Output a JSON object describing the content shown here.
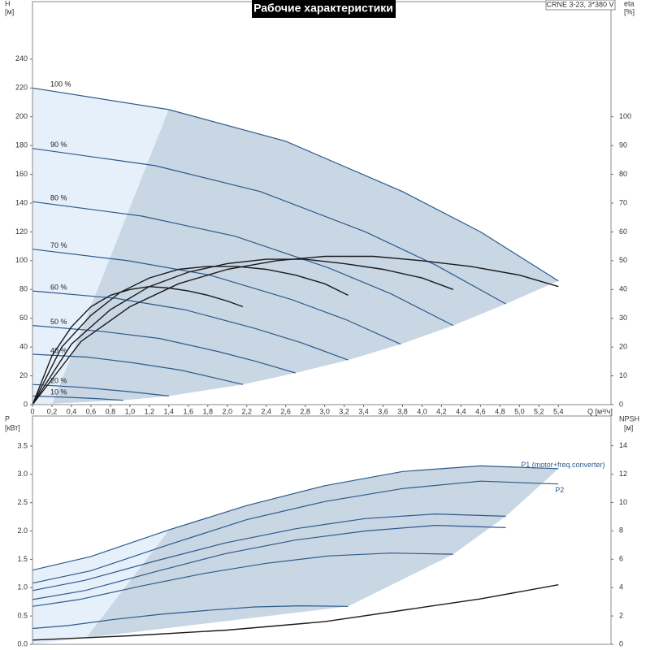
{
  "chart_data": [
    {
      "type": "line",
      "title": "Рабочие характеристики",
      "annotation": "CRNE 3-23, 3*380 V",
      "xlabel": "Q [м³/ч]",
      "ylabel": "H",
      "yunit": "[м]",
      "y2label": "eta",
      "y2unit": "[%]",
      "xlim": [
        0,
        5.94
      ],
      "ylim": [
        0,
        280
      ],
      "y2lim": [
        0,
        140
      ],
      "xticks": [
        0,
        {
          "value": 0.2,
          "label": "0,2"
        },
        {
          "value": 0.4,
          "label": "0,4"
        },
        {
          "value": 0.6,
          "label": "0,6"
        },
        {
          "value": 0.8,
          "label": "0,8"
        },
        {
          "value": 1.0,
          "label": "1,0"
        },
        {
          "value": 1.2,
          "label": "1,2"
        },
        {
          "value": 1.4,
          "label": "1,4"
        },
        {
          "value": 1.6,
          "label": "1,6"
        },
        {
          "value": 1.8,
          "label": "1,8"
        },
        {
          "value": 2.0,
          "label": "2,0"
        },
        {
          "value": 2.2,
          "label": "2,2"
        },
        {
          "value": 2.4,
          "label": "2,4"
        },
        {
          "value": 2.6,
          "label": "2,6"
        },
        {
          "value": 2.8,
          "label": "2,8"
        },
        {
          "value": 3.0,
          "label": "3,0"
        },
        {
          "value": 3.2,
          "label": "3,2"
        },
        {
          "value": 3.4,
          "label": "3,4"
        },
        {
          "value": 3.6,
          "label": "3,6"
        },
        {
          "value": 3.8,
          "label": "3,8"
        },
        {
          "value": 4.0,
          "label": "4,0"
        },
        {
          "value": 4.2,
          "label": "4,2"
        },
        {
          "value": 4.4,
          "label": "4,4"
        },
        {
          "value": 4.6,
          "label": "4,6"
        },
        {
          "value": 4.8,
          "label": "4,8"
        },
        {
          "value": 5.0,
          "label": "5,0"
        },
        {
          "value": 5.2,
          "label": "5,2"
        },
        {
          "value": 5.4,
          "label": "5,4"
        }
      ],
      "yticks": [
        0,
        20,
        40,
        60,
        80,
        100,
        120,
        140,
        160,
        180,
        200,
        220,
        240
      ],
      "y2ticks": [
        0,
        10,
        20,
        30,
        40,
        50,
        60,
        70,
        80,
        90,
        100
      ],
      "series": [
        {
          "name": "100 %",
          "color": "#2d5a8c",
          "x": [
            0,
            1.4,
            2.6,
            3.8,
            4.6,
            5.4
          ],
          "values": [
            220,
            205,
            183,
            148,
            120,
            86
          ]
        },
        {
          "name": "90 %",
          "color": "#2d5a8c",
          "x": [
            0,
            1.26,
            2.34,
            3.42,
            4.14,
            4.86
          ],
          "values": [
            178,
            166,
            148,
            120,
            97,
            70
          ]
        },
        {
          "name": "80 %",
          "color": "#2d5a8c",
          "x": [
            0,
            1.12,
            2.08,
            3.04,
            3.68,
            4.32
          ],
          "values": [
            141,
            131,
            117,
            95,
            77,
            55
          ]
        },
        {
          "name": "70 %",
          "color": "#2d5a8c",
          "x": [
            0,
            0.98,
            1.82,
            2.66,
            3.22,
            3.78
          ],
          "values": [
            108,
            100,
            90,
            73,
            59,
            42
          ]
        },
        {
          "name": "60 %",
          "color": "#2d5a8c",
          "x": [
            0,
            0.84,
            1.56,
            2.28,
            2.76,
            3.24
          ],
          "values": [
            79,
            74,
            66,
            53,
            43,
            31
          ]
        },
        {
          "name": "50 %",
          "color": "#2d5a8c",
          "x": [
            0,
            0.7,
            1.3,
            1.9,
            2.3,
            2.7
          ],
          "values": [
            55,
            51,
            46,
            37,
            30,
            22
          ]
        },
        {
          "name": "40 %",
          "color": "#2d5a8c",
          "x": [
            0,
            0.56,
            1.04,
            1.52,
            1.84,
            2.16
          ],
          "values": [
            35,
            33,
            29,
            24,
            19,
            14
          ]
        },
        {
          "name": "20 %",
          "color": "#2d5a8c",
          "x": [
            0,
            0.5,
            1.0,
            1.4
          ],
          "values": [
            14,
            12,
            9,
            6
          ]
        },
        {
          "name": "10 %",
          "color": "#2d5a8c",
          "x": [
            0,
            0.4,
            0.7,
            0.93
          ],
          "values": [
            6,
            5,
            4,
            3
          ]
        },
        {
          "color": "#1a1a1a",
          "axis": "y2",
          "x": [
            0,
            0.5,
            1.0,
            1.5,
            2.0,
            2.5,
            3.0,
            3.5,
            4.0,
            4.5,
            5.0,
            5.4
          ],
          "values": [
            0,
            22,
            34,
            42,
            47,
            50,
            51.5,
            51.5,
            50,
            48,
            45,
            41
          ]
        },
        {
          "color": "#1a1a1a",
          "axis": "y2",
          "x": [
            0,
            0.4,
            0.8,
            1.2,
            1.6,
            2.0,
            2.4,
            2.8,
            3.2,
            3.6,
            4.0,
            4.32
          ],
          "values": [
            0,
            21,
            33,
            41,
            46,
            49,
            50.5,
            50.5,
            49,
            47,
            44,
            40
          ]
        },
        {
          "color": "#1a1a1a",
          "axis": "y2",
          "x": [
            0,
            0.3,
            0.6,
            0.9,
            1.2,
            1.5,
            1.8,
            2.1,
            2.4,
            2.7,
            3.0,
            3.24
          ],
          "values": [
            0,
            20,
            31,
            39,
            44,
            47,
            48,
            48,
            47,
            45,
            42,
            38
          ]
        },
        {
          "color": "#1a1a1a",
          "axis": "y2",
          "x": [
            0,
            0.2,
            0.4,
            0.6,
            0.8,
            1.0,
            1.2,
            1.4,
            1.6,
            1.8,
            2.0,
            2.16
          ],
          "values": [
            0,
            17,
            27,
            34,
            38,
            40,
            41,
            40.5,
            39.5,
            38,
            36,
            34
          ]
        }
      ]
    },
    {
      "type": "line",
      "ylabel": "P",
      "yunit": "[кВт]",
      "y2label": "NPSH",
      "y2unit": "[м]",
      "xlim": [
        0,
        5.94
      ],
      "ylim": [
        0,
        4.03
      ],
      "y2lim": [
        0,
        16.1
      ],
      "yticks": [
        {
          "value": 0,
          "label": "0.0"
        },
        0.5,
        {
          "value": 1,
          "label": "1.0"
        },
        1.5,
        {
          "value": 2,
          "label": "2.0"
        },
        2.5,
        {
          "value": 3,
          "label": "3.0"
        },
        3.5
      ],
      "y2ticks": [
        0,
        2,
        4,
        6,
        8,
        10,
        12,
        14
      ],
      "series": [
        {
          "name": "P1 (motor+freq.converter)",
          "color": "#2d5a8c",
          "x": [
            0,
            0.6,
            1.4,
            2.2,
            3.0,
            3.8,
            4.6,
            5.4
          ],
          "values": [
            1.31,
            1.55,
            2.02,
            2.45,
            2.8,
            3.05,
            3.15,
            3.1
          ]
        },
        {
          "color": "#2d5a8c",
          "x": [
            0,
            0.54,
            1.26,
            1.98,
            2.7,
            3.42,
            4.14,
            4.86
          ],
          "values": [
            0.95,
            1.13,
            1.47,
            1.79,
            2.04,
            2.22,
            2.3,
            2.26
          ]
        },
        {
          "color": "#2d5a8c",
          "x": [
            0,
            0.48,
            1.12,
            1.76,
            2.4,
            3.04,
            3.68,
            4.32
          ],
          "values": [
            0.67,
            0.79,
            1.03,
            1.25,
            1.43,
            1.56,
            1.61,
            1.59
          ]
        },
        {
          "color": "#2d5a8c",
          "x": [
            0,
            0.36,
            0.84,
            1.32,
            1.8,
            2.28,
            2.76,
            3.24
          ],
          "values": [
            0.28,
            0.33,
            0.44,
            0.53,
            0.6,
            0.66,
            0.68,
            0.67
          ]
        },
        {
          "name": "P2",
          "color": "#2d5a8c",
          "x": [
            0,
            0.6,
            1.4,
            2.2,
            3.0,
            3.8,
            4.6,
            5.4
          ],
          "values": [
            1.08,
            1.3,
            1.76,
            2.2,
            2.52,
            2.75,
            2.88,
            2.83
          ]
        },
        {
          "color": "#2d5a8c",
          "x": [
            0,
            0.54,
            1.26,
            1.98,
            2.7,
            3.42,
            4.14,
            4.86
          ],
          "values": [
            0.79,
            0.95,
            1.28,
            1.6,
            1.84,
            2.0,
            2.1,
            2.06
          ]
        },
        {
          "color": "#1a1a1a",
          "axis": "y2",
          "x": [
            0,
            1.0,
            2.0,
            3.0,
            4.0,
            4.6,
            5.4
          ],
          "values": [
            0.3,
            0.6,
            1.0,
            1.6,
            2.6,
            3.2,
            4.2
          ]
        }
      ]
    }
  ]
}
